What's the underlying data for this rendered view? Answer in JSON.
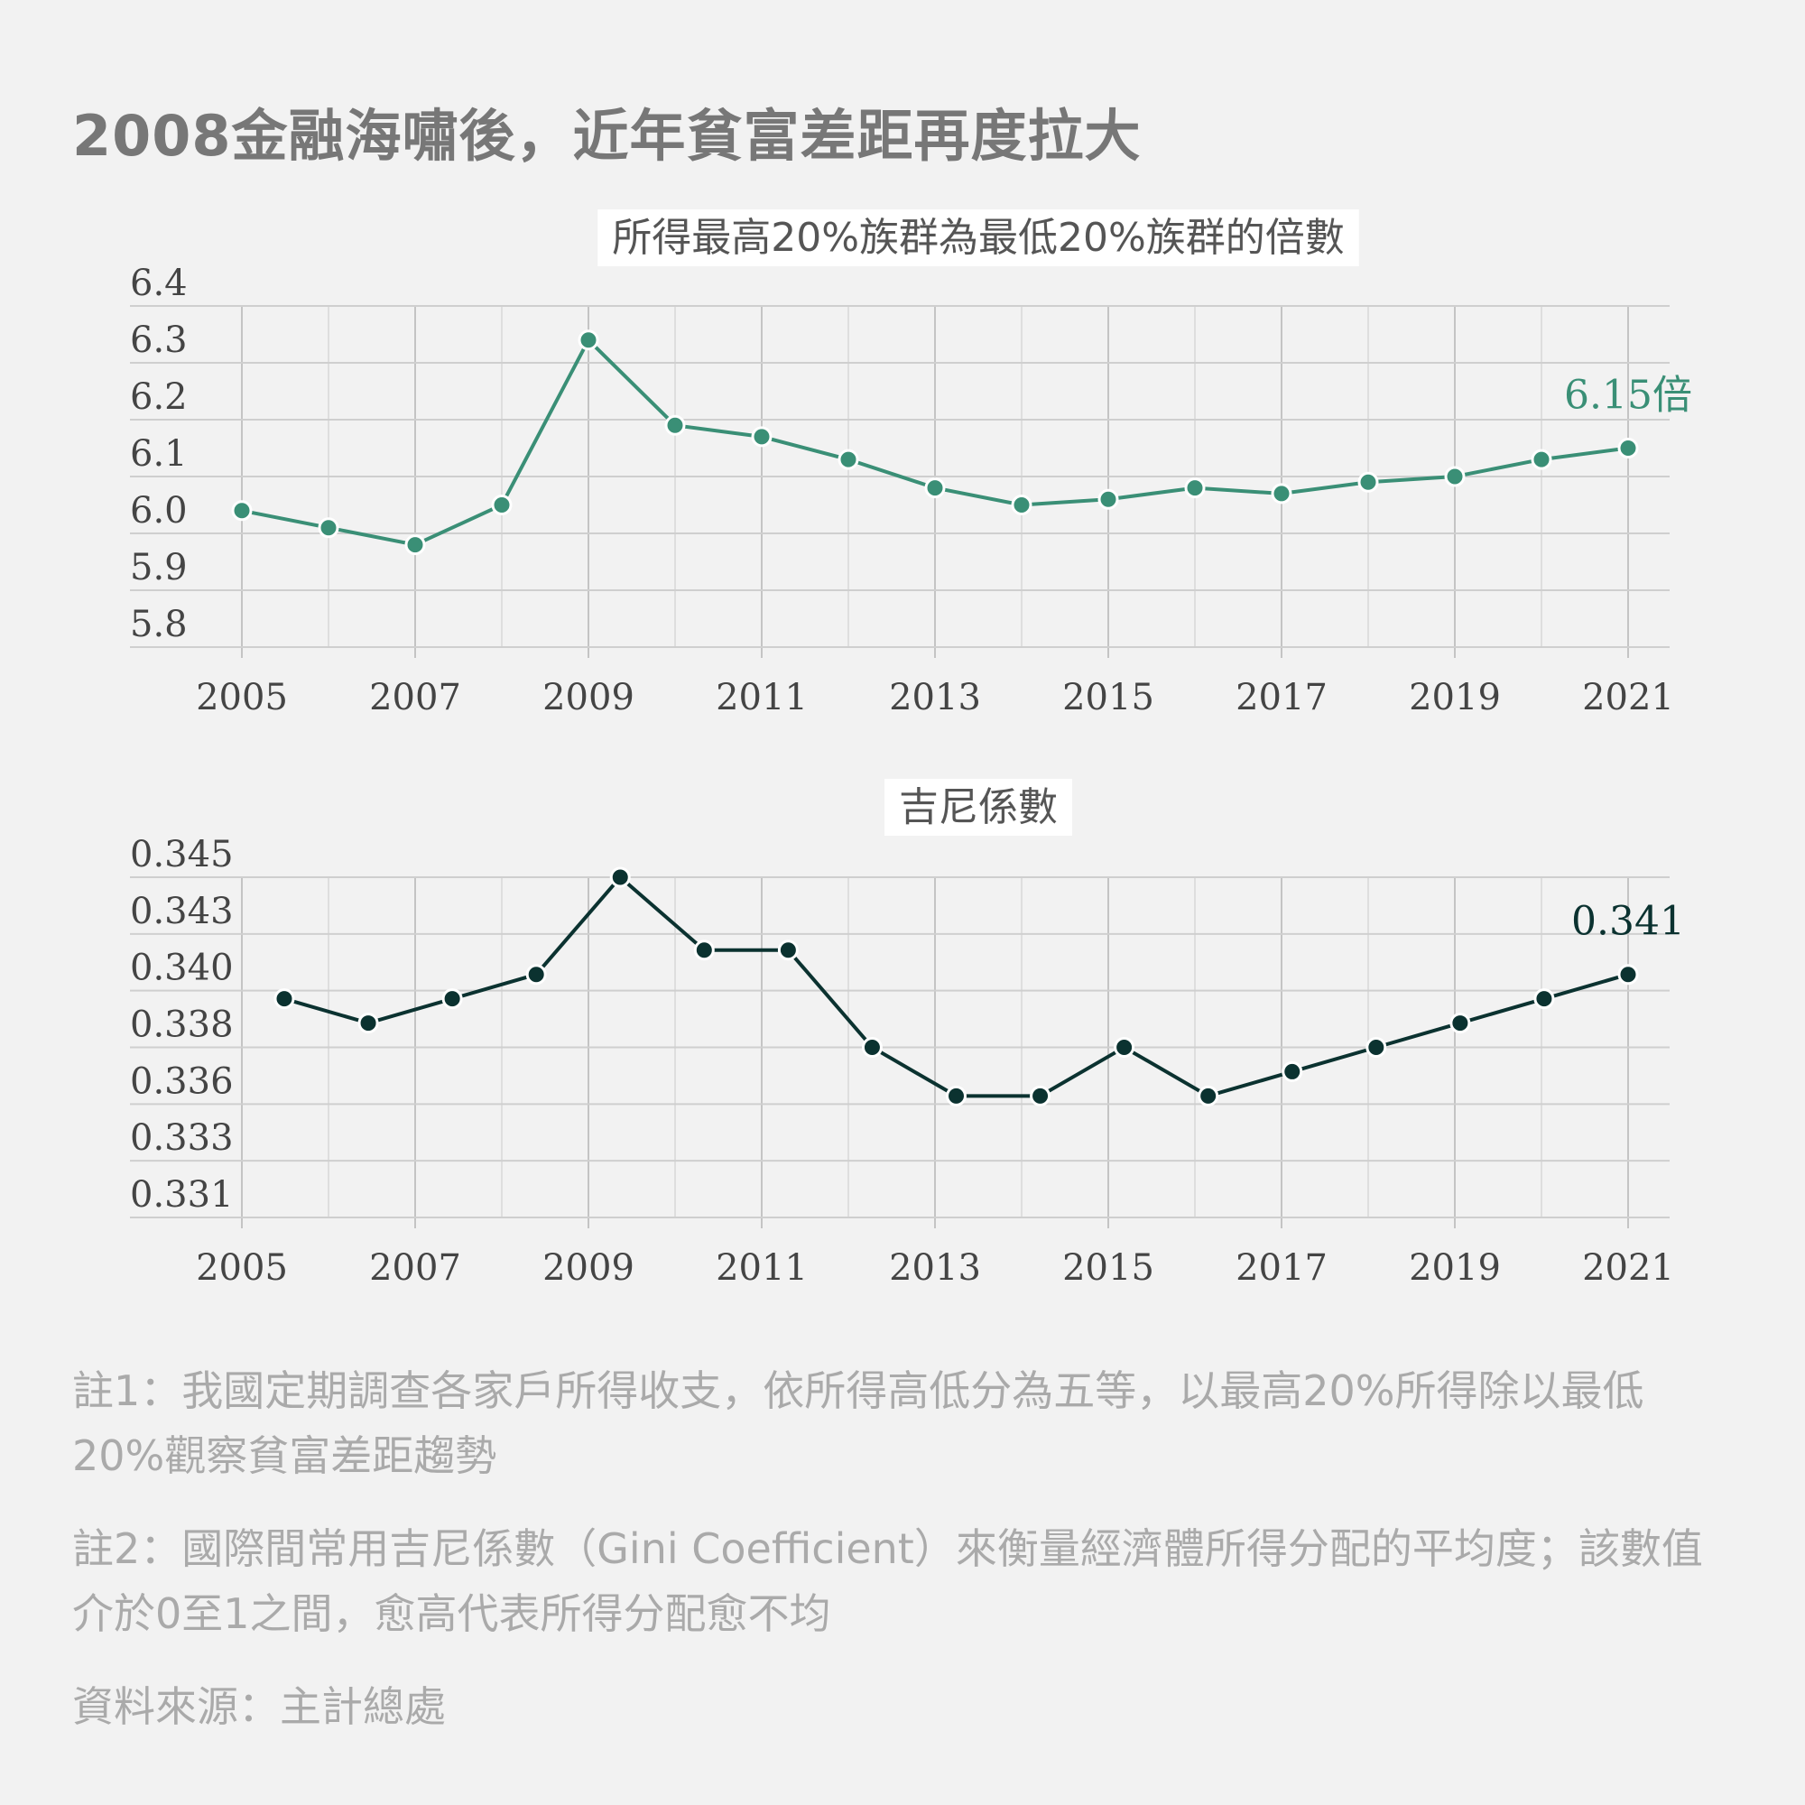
{
  "title": "2008金融海嘯後，近年貧富差距再度拉大",
  "colors": {
    "ratio_line": "#3a8f76",
    "gini_line": "#0b3230",
    "background": "#f2f2f2",
    "grid": "#cfcfcf"
  },
  "chart_data": [
    {
      "type": "line",
      "title": "所得最高20%族群為最低20%族群的倍數",
      "x": [
        2005,
        2006,
        2007,
        2008,
        2009,
        2010,
        2011,
        2012,
        2013,
        2014,
        2015,
        2016,
        2017,
        2018,
        2019,
        2020,
        2021
      ],
      "values": [
        6.04,
        6.01,
        5.98,
        6.05,
        6.34,
        6.19,
        6.17,
        6.13,
        6.08,
        6.05,
        6.06,
        6.08,
        6.07,
        6.09,
        6.1,
        6.13,
        6.15
      ],
      "ylim": [
        5.8,
        6.4
      ],
      "yticks": [
        "6.4",
        "6.3",
        "6.2",
        "6.1",
        "6.0",
        "5.9",
        "5.8"
      ],
      "xticks": [
        "2005",
        "2007",
        "2009",
        "2011",
        "2013",
        "2015",
        "2017",
        "2019",
        "2021"
      ],
      "annotation": "6.15倍",
      "grid": true
    },
    {
      "type": "line",
      "title": "吉尼係數",
      "x": [
        2005,
        2006,
        2007,
        2008,
        2009,
        2010,
        2011,
        2012,
        2013,
        2014,
        2015,
        2016,
        2017,
        2018,
        2019,
        2020,
        2021
      ],
      "values": [
        0.34,
        0.339,
        0.34,
        0.341,
        0.345,
        0.342,
        0.342,
        0.338,
        0.336,
        0.336,
        0.338,
        0.336,
        0.337,
        0.338,
        0.339,
        0.34,
        0.341
      ],
      "ylim": [
        0.331,
        0.345
      ],
      "yticks": [
        "0.345",
        "0.343",
        "0.340",
        "0.338",
        "0.336",
        "0.333",
        "0.331"
      ],
      "xticks": [
        "2005",
        "2007",
        "2009",
        "2011",
        "2013",
        "2015",
        "2017",
        "2019",
        "2021"
      ],
      "annotation": "0.341",
      "grid": true
    }
  ],
  "notes": {
    "note1": "註1：我國定期調查各家戶所得收支，依所得高低分為五等，以最高20%所得除以最低20%觀察貧富差距趨勢",
    "note2": "註2：國際間常用吉尼係數（Gini Coefficient）來衡量經濟體所得分配的平均度；該數值介於0至1之間，愈高代表所得分配愈不均",
    "source": "資料來源：主計總處"
  }
}
